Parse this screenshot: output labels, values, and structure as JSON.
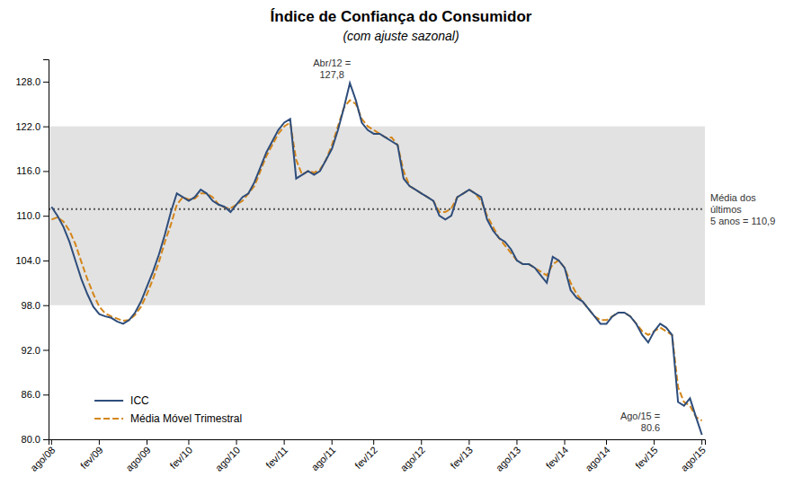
{
  "chart_data": {
    "type": "line",
    "title": "Índice de Confiança do Consumidor",
    "subtitle": "(com ajuste sazonal)",
    "categories": [
      "ago/08",
      null,
      null,
      null,
      null,
      null,
      null,
      null,
      "fev/09",
      null,
      null,
      null,
      null,
      null,
      null,
      null,
      "ago/09",
      null,
      null,
      null,
      null,
      null,
      null,
      "fev/10",
      null,
      null,
      null,
      null,
      null,
      null,
      null,
      "ago/10",
      null,
      null,
      null,
      null,
      null,
      null,
      null,
      "fev/11",
      null,
      null,
      null,
      null,
      null,
      null,
      null,
      "ago/11",
      null,
      null,
      null,
      null,
      null,
      null,
      "fev/12",
      null,
      null,
      null,
      null,
      null,
      null,
      null,
      "ago/12",
      null,
      null,
      null,
      null,
      null,
      null,
      null,
      "fev/13",
      null,
      null,
      null,
      null,
      null,
      null,
      null,
      "ago/13",
      null,
      null,
      null,
      null,
      null,
      null,
      null,
      "fev/14",
      null,
      null,
      null,
      null,
      null,
      null,
      "ago/14",
      null,
      null,
      null,
      null,
      null,
      null,
      null,
      "fev/15",
      null,
      null,
      null,
      null,
      null,
      null,
      null,
      "ago/15"
    ],
    "series": [
      {
        "name": "ICC",
        "color": "#2e4d7b",
        "line_style": "solid",
        "values": [
          111.2,
          110.0,
          108.5,
          106.5,
          104.0,
          101.5,
          99.5,
          97.8,
          96.8,
          96.5,
          96.3,
          95.8,
          95.5,
          96.0,
          97.0,
          98.5,
          100.5,
          102.5,
          104.8,
          107.5,
          110.5,
          113.0,
          112.5,
          112.0,
          112.5,
          113.5,
          113.0,
          112.0,
          111.5,
          111.2,
          110.5,
          111.5,
          112.5,
          113.0,
          114.5,
          116.5,
          118.5,
          120.0,
          121.5,
          122.5,
          123.0,
          115.0,
          115.5,
          116.0,
          115.5,
          116.0,
          117.5,
          119.0,
          121.5,
          124.5,
          127.8,
          125.5,
          122.5,
          121.5,
          121.0,
          121.0,
          120.5,
          120.0,
          119.5,
          115.0,
          114.0,
          113.5,
          113.0,
          112.5,
          112.0,
          110.0,
          109.5,
          110.0,
          112.5,
          113.0,
          113.5,
          113.0,
          112.5,
          109.5,
          108.0,
          107.0,
          106.5,
          105.5,
          104.0,
          103.5,
          103.5,
          103.0,
          102.0,
          101.0,
          104.5,
          104.0,
          103.0,
          100.0,
          99.0,
          98.5,
          97.5,
          96.5,
          95.5,
          95.5,
          96.5,
          97.0,
          97.0,
          96.5,
          95.5,
          94.0,
          93.0,
          94.5,
          95.5,
          95.0,
          94.0,
          85.0,
          84.5,
          85.5,
          83.0,
          80.6
        ]
      },
      {
        "name": "Média Móvel Trimestral",
        "color": "#d4861a",
        "line_style": "dashed",
        "values": [
          109.5,
          109.8,
          109.2,
          108.0,
          106.2,
          103.8,
          101.5,
          99.5,
          97.8,
          96.9,
          96.5,
          96.2,
          95.9,
          96.0,
          96.7,
          97.8,
          99.5,
          101.5,
          103.8,
          106.5,
          108.8,
          111.5,
          112.5,
          112.2,
          112.3,
          113.0,
          113.0,
          112.5,
          111.5,
          111.1,
          111.0,
          111.5,
          112.0,
          113.0,
          114.0,
          116.0,
          118.0,
          119.5,
          121.0,
          122.0,
          122.5,
          117.5,
          115.5,
          116.0,
          115.8,
          116.2,
          117.5,
          119.5,
          122.0,
          124.5,
          125.5,
          125.0,
          123.0,
          122.0,
          121.5,
          121.0,
          120.5,
          120.5,
          119.5,
          116.0,
          114.0,
          113.5,
          113.0,
          112.5,
          112.0,
          110.5,
          110.5,
          111.0,
          112.5,
          113.0,
          113.5,
          113.0,
          112.0,
          110.0,
          108.5,
          107.0,
          106.0,
          105.0,
          104.0,
          103.5,
          103.5,
          103.0,
          102.5,
          102.0,
          103.5,
          104.0,
          103.0,
          101.0,
          99.5,
          98.5,
          97.5,
          96.5,
          96.0,
          96.0,
          96.5,
          97.0,
          97.0,
          96.5,
          95.5,
          94.5,
          94.0,
          94.5,
          95.0,
          94.5,
          94.0,
          87.0,
          85.0,
          84.5,
          83.0,
          82.5
        ]
      }
    ],
    "band": {
      "lower": 98.0,
      "upper": 122.0,
      "color": "#e2e2e2"
    },
    "mean_line": {
      "value": 110.9,
      "label": "Média dos\núltimos\n5 anos = 110,9",
      "line_style": "dotted"
    },
    "annotations": [
      {
        "text": "Abr/12 =\n127,8",
        "y": 127.8
      },
      {
        "text": "Ago/15 =\n80.6",
        "y": 80.6
      }
    ],
    "ylim": [
      80.0,
      131.0
    ],
    "yticks": [
      {
        "value": 80.0,
        "label": "80.0"
      },
      {
        "value": 86.0,
        "label": "86.0"
      },
      {
        "value": 92.0,
        "label": "92.0"
      },
      {
        "value": 98.0,
        "label": "98.0"
      },
      {
        "value": 104.0,
        "label": "104.0"
      },
      {
        "value": 110.0,
        "label": "110.0"
      },
      {
        "value": 116.0,
        "label": "116.0"
      },
      {
        "value": 122.0,
        "label": "122.0"
      },
      {
        "value": 128.0,
        "label": "128.0"
      }
    ],
    "grid": false,
    "legend": "lower left"
  }
}
